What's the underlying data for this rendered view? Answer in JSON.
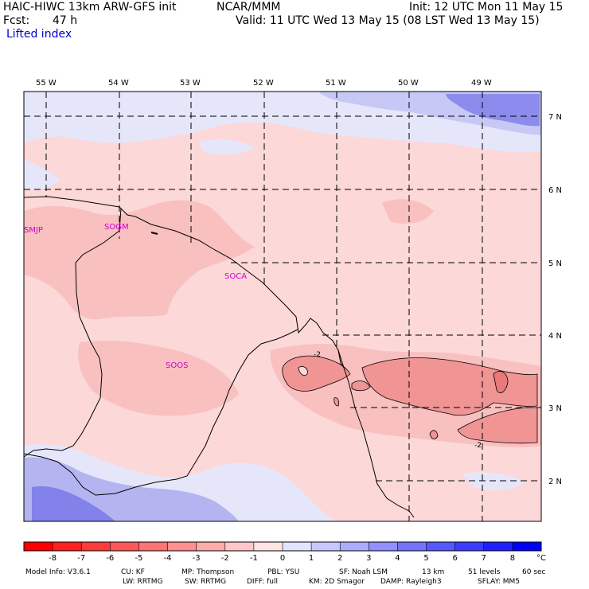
{
  "header": {
    "model_title": "HAIC-HIWC 13km ARW-GFS init",
    "org": "NCAR/MMM",
    "init": "Init: 12 UTC Mon 11 May 15",
    "fcst_label": "Fcst:",
    "fcst_value": "47 h",
    "valid": "Valid: 11 UTC Wed 13 May 15 (08 LST Wed 13 May 15)",
    "field": "Lifted index"
  },
  "map": {
    "lon_labels": [
      "55 W",
      "54 W",
      "53 W",
      "52 W",
      "51 W",
      "50 W",
      "49 W"
    ],
    "lat_labels": [
      "7 N",
      "6 N",
      "5 N",
      "4 N",
      "3 N",
      "2 N"
    ],
    "stations": [
      "SMJP",
      "SOGM",
      "SOCA",
      "SOOS"
    ],
    "contour_label": "-2",
    "colors": {
      "neg_light": "#fcd8d8",
      "neg_mid": "#f7a8a8",
      "pos_light": "#e6e6fa",
      "pos_mid": "#b4b4f0",
      "pos_strong": "#8282ea",
      "station": "#cc00cc"
    }
  },
  "colorbar": {
    "ticks": [
      "-8",
      "-7",
      "-6",
      "-5",
      "-4",
      "-3",
      "-2",
      "-1",
      "0",
      "1",
      "2",
      "3",
      "4",
      "5",
      "6",
      "7",
      "8"
    ],
    "unit": "°C",
    "colors": [
      "#ff0000",
      "#ff2020",
      "#ff3c3c",
      "#ff5858",
      "#ff7474",
      "#ff9090",
      "#ffacac",
      "#ffc8c8",
      "#ffe4e4",
      "#e4e4ff",
      "#c8c8ff",
      "#acacff",
      "#9090ff",
      "#7474ff",
      "#5858ff",
      "#3c3cff",
      "#2020ff",
      "#0000ff"
    ]
  },
  "footer": {
    "line1": [
      "Model Info: V3.6.1",
      "CU: KF",
      "MP: Thompson",
      "PBL: YSU",
      "SF: Noah LSM",
      "13 km",
      "51 levels",
      "60 sec"
    ],
    "line2": [
      "LW: RRTMG",
      "SW: RRTMG",
      "DIFF: full",
      "KM: 2D Smagor",
      "DAMP: Rayleigh3",
      "SFLAY: MM5"
    ]
  }
}
